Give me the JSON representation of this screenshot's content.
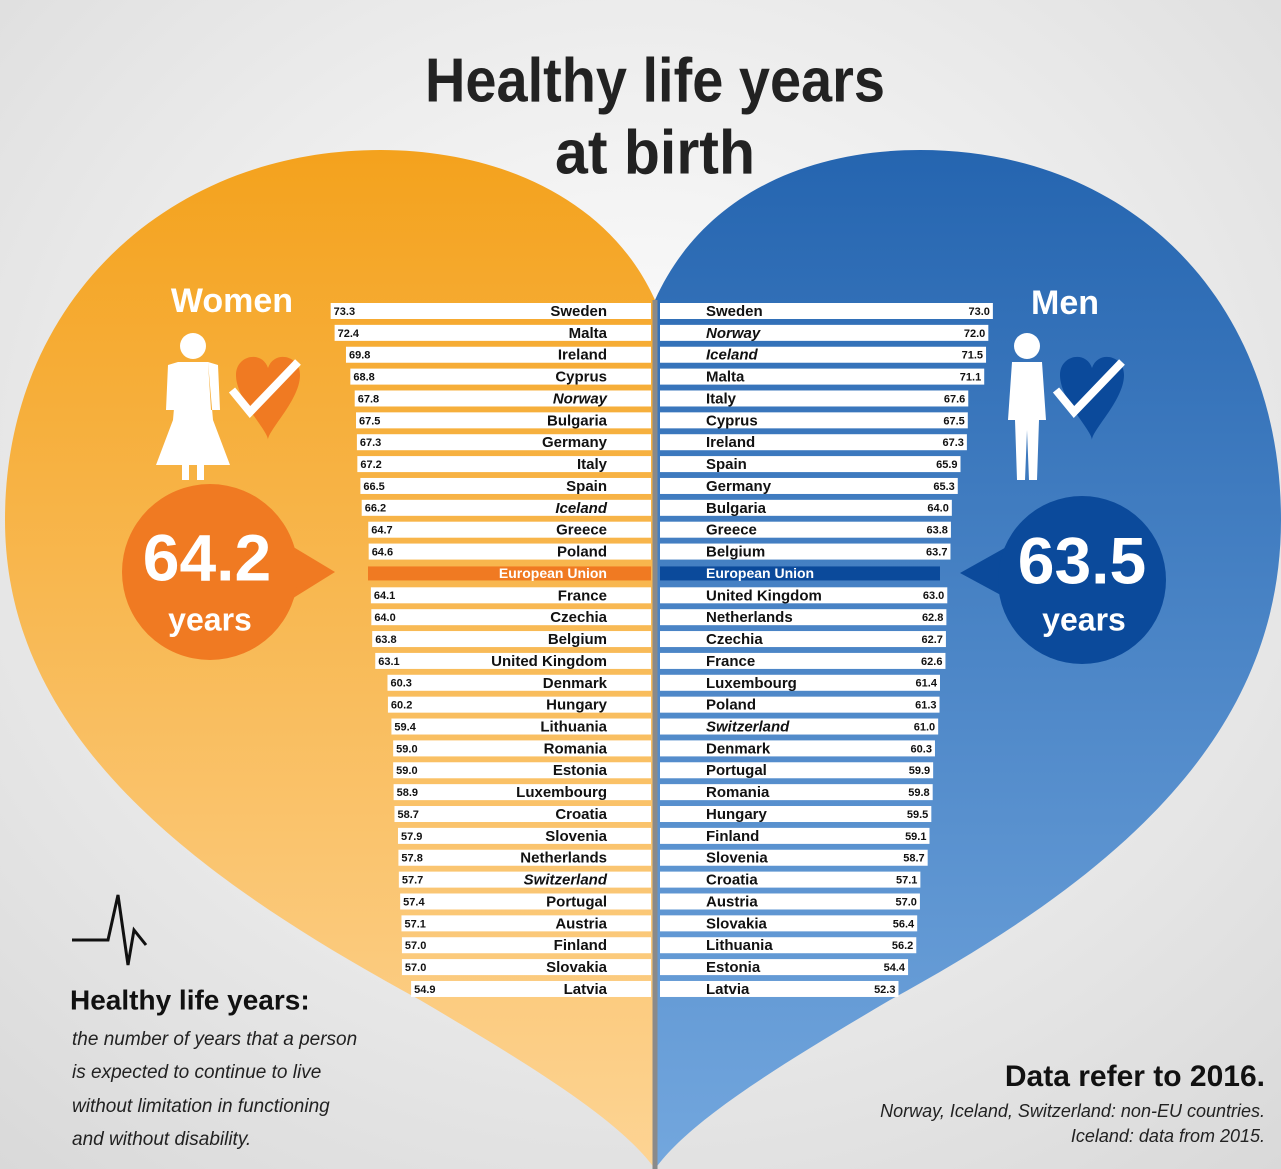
{
  "chart_data": {
    "type": "butterfly",
    "title": [
      "Healthy life years",
      "at birth"
    ],
    "series": [
      {
        "name": "Women",
        "color": "#f07a22",
        "categories": [
          "Sweden",
          "Malta",
          "Ireland",
          "Cyprus",
          "Norway",
          "Bulgaria",
          "Germany",
          "Italy",
          "Spain",
          "Iceland",
          "Greece",
          "Poland",
          "European Union",
          "France",
          "Czechia",
          "Belgium",
          "United Kingdom",
          "Denmark",
          "Hungary",
          "Lithuania",
          "Romania",
          "Estonia",
          "Luxembourg",
          "Croatia",
          "Slovenia",
          "Netherlands",
          "Switzerland",
          "Portugal",
          "Austria",
          "Finland",
          "Slovakia",
          "Latvia"
        ],
        "values": [
          73.3,
          72.4,
          69.8,
          68.8,
          67.8,
          67.5,
          67.3,
          67.2,
          66.5,
          66.2,
          64.7,
          64.6,
          null,
          64.1,
          64.0,
          63.8,
          63.1,
          60.3,
          60.2,
          59.4,
          59.0,
          59.0,
          58.9,
          58.7,
          57.9,
          57.8,
          57.7,
          57.4,
          57.1,
          57.0,
          57.0,
          54.9
        ],
        "value_labels": [
          "73.3",
          "72.4",
          "69.8",
          "68.8",
          "67.8",
          "67.5",
          "67.3",
          "67.2",
          "66.5",
          "66.2",
          "64.7",
          "64.6",
          null,
          "64.1",
          "64.0",
          "63.8",
          "63.1",
          "60.3",
          "60.2",
          "59.4",
          "59.0",
          "59.0",
          "58.9",
          "58.7",
          "57.9",
          "57.8",
          "57.7",
          "57.4",
          "57.1",
          "57.0",
          "57.0",
          "54.9"
        ],
        "italic": [
          4,
          9,
          26
        ],
        "average": 64.2,
        "average_unit": "years"
      },
      {
        "name": "Men",
        "color": "#0b4a9b",
        "categories": [
          "Sweden",
          "Norway",
          "Iceland",
          "Malta",
          "Italy",
          "Cyprus",
          "Ireland",
          "Spain",
          "Germany",
          "Bulgaria",
          "Greece",
          "Belgium",
          "European Union",
          "United Kingdom",
          "Netherlands",
          "Czechia",
          "France",
          "Luxembourg",
          "Poland",
          "Switzerland",
          "Denmark",
          "Portugal",
          "Romania",
          "Hungary",
          "Finland",
          "Slovenia",
          "Croatia",
          "Austria",
          "Slovakia",
          "Lithuania",
          "Estonia",
          "Latvia"
        ],
        "values": [
          73.0,
          72.0,
          71.5,
          71.1,
          67.6,
          67.5,
          67.3,
          65.9,
          65.3,
          64.0,
          63.8,
          63.7,
          null,
          63.0,
          62.8,
          62.7,
          62.6,
          61.4,
          61.3,
          61.0,
          60.3,
          59.9,
          59.8,
          59.5,
          59.1,
          58.7,
          57.1,
          57.0,
          56.4,
          56.2,
          54.4,
          52.3
        ],
        "value_labels": [
          "73.0",
          "72.0",
          "71.5",
          "71.1",
          "67.6",
          "67.5",
          "67.3",
          "65.9",
          "65.3",
          "64.0",
          "63.8",
          "63.7",
          null,
          "63.0",
          "62.8",
          "62.7",
          "62.6",
          "61.4",
          "61.3",
          "61.0",
          "60.3",
          "59.9",
          "59.8",
          "59.5",
          "59.1",
          "58.7",
          "57.1",
          "57.0",
          "56.4",
          "56.2",
          "54.4",
          "52.3"
        ],
        "italic": [
          1,
          2,
          19
        ],
        "average": 63.5,
        "average_unit": "years"
      }
    ]
  },
  "definition": {
    "title": "Healthy life years:",
    "lines": [
      "the number of years that a person",
      "is expected to continue to live",
      "without limitation in functioning",
      "and without disability."
    ]
  },
  "notes": {
    "headline": "Data refer to 2016.",
    "lines": [
      "Norway, Iceland, Switzerland: non-EU countries.",
      "Iceland: data from 2015."
    ]
  }
}
